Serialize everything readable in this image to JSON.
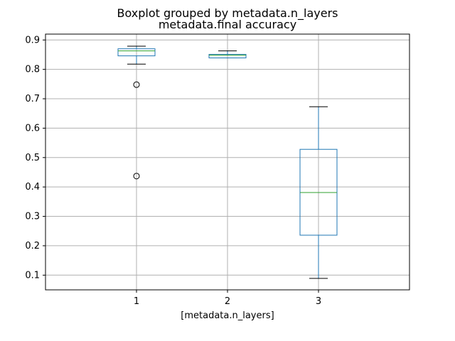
{
  "chart_data": {
    "type": "boxplot",
    "title": "Boxplot grouped by metadata.n_layers",
    "subtitle": "metadata.final accuracy",
    "xlabel": "[metadata.n_layers]",
    "ylabel": "",
    "categories": [
      "1",
      "2",
      "3"
    ],
    "ylim": [
      0.05,
      0.92
    ],
    "yticks": [
      "0.1",
      "0.2",
      "0.3",
      "0.4",
      "0.5",
      "0.6",
      "0.7",
      "0.8",
      "0.9"
    ],
    "grid": true,
    "boxes": [
      {
        "category": "1",
        "whisker_low": 0.818,
        "q1": 0.846,
        "median": 0.863,
        "q3": 0.87,
        "whisker_high": 0.879,
        "outliers": [
          0.748,
          0.437
        ]
      },
      {
        "category": "2",
        "whisker_low": 0.839,
        "q1": 0.839,
        "median": 0.848,
        "q3": 0.851,
        "whisker_high": 0.863,
        "outliers": []
      },
      {
        "category": "3",
        "whisker_low": 0.089,
        "q1": 0.236,
        "median": 0.381,
        "q3": 0.528,
        "whisker_high": 0.673,
        "outliers": []
      }
    ],
    "colors": {
      "box": "#1f77b4",
      "median": "#2ca02c",
      "whisker": "#1f77b4",
      "cap": "#000000",
      "grid": "#b0b0b0"
    }
  }
}
